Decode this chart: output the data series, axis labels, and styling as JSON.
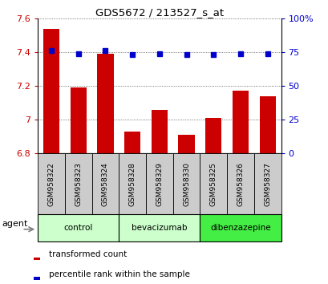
{
  "title": "GDS5672 / 213527_s_at",
  "samples": [
    "GSM958322",
    "GSM958323",
    "GSM958324",
    "GSM958328",
    "GSM958329",
    "GSM958330",
    "GSM958325",
    "GSM958326",
    "GSM958327"
  ],
  "bar_values": [
    7.54,
    7.19,
    7.39,
    6.93,
    7.06,
    6.91,
    7.01,
    7.17,
    7.14
  ],
  "percentile_values": [
    76,
    74,
    76,
    73,
    74,
    73,
    73,
    74,
    74
  ],
  "bar_color": "#cc0000",
  "dot_color": "#0000cc",
  "ylim_left": [
    6.8,
    7.6
  ],
  "ylim_right": [
    0,
    100
  ],
  "yticks_left": [
    6.8,
    7.0,
    7.2,
    7.4,
    7.6
  ],
  "yticks_right": [
    0,
    25,
    50,
    75,
    100
  ],
  "ytick_labels_left": [
    "6.8",
    "7",
    "7.2",
    "7.4",
    "7.6"
  ],
  "ytick_labels_right": [
    "0",
    "25",
    "50",
    "75",
    "100%"
  ],
  "groups": [
    {
      "label": "control",
      "indices": [
        0,
        1,
        2
      ],
      "color": "#ccffcc"
    },
    {
      "label": "bevacizumab",
      "indices": [
        3,
        4,
        5
      ],
      "color": "#ccffcc"
    },
    {
      "label": "dibenzazepine",
      "indices": [
        6,
        7,
        8
      ],
      "color": "#44ee44"
    }
  ],
  "agent_label": "agent",
  "legend_bar_label": "transformed count",
  "legend_dot_label": "percentile rank within the sample",
  "bar_width": 0.6,
  "bg_sample_row": "#cccccc",
  "bar_bottom": 6.8
}
